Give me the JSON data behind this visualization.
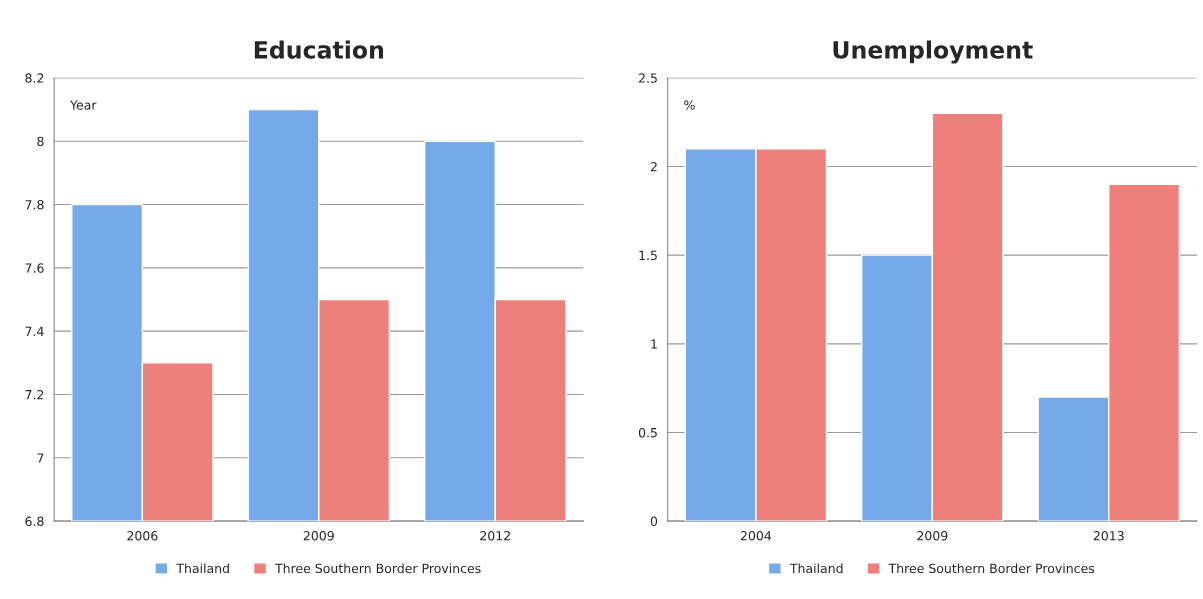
{
  "chart_data": [
    {
      "type": "bar",
      "title": "Education",
      "ylabel": "Year",
      "categories": [
        "2006",
        "2009",
        "2012"
      ],
      "series": [
        {
          "name": "Thailand",
          "color": "#74aaea",
          "values": [
            7.8,
            8.1,
            8.0
          ]
        },
        {
          "name": "Three Southern Border Provinces",
          "color": "#ee7f7a",
          "values": [
            7.3,
            7.5,
            7.5
          ]
        }
      ],
      "ylim": [
        6.8,
        8.2
      ],
      "yticks": [
        6.8,
        7,
        7.2,
        7.4,
        7.6,
        7.8,
        8,
        8.2
      ],
      "grid": "y",
      "legend": "bottom"
    },
    {
      "type": "bar",
      "title": "Unemployment",
      "ylabel": "%",
      "categories": [
        "2004",
        "2009",
        "2013"
      ],
      "series": [
        {
          "name": "Thailand",
          "color": "#74aaea",
          "values": [
            2.1,
            1.5,
            0.7
          ]
        },
        {
          "name": "Three Southern Border Provinces",
          "color": "#ee7f7a",
          "values": [
            2.1,
            2.3,
            1.9
          ]
        }
      ],
      "ylim": [
        0,
        2.5
      ],
      "yticks": [
        0,
        0.5,
        1,
        1.5,
        2,
        2.5
      ],
      "grid": "y",
      "legend": "bottom"
    }
  ]
}
